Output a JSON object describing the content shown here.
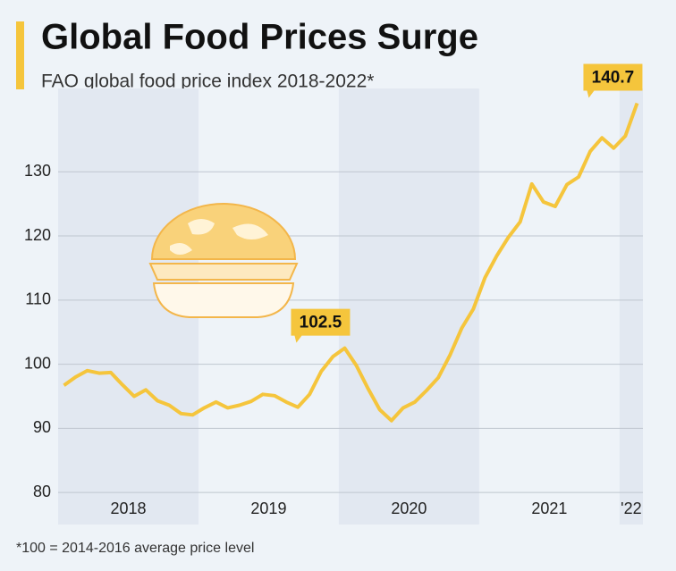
{
  "chart_data": {
    "type": "line",
    "title": "Global Food Prices Surge",
    "subtitle": "FAO global food price index 2018-2022*",
    "footnote": "*100 = 2014-2016 average price level",
    "categories": [
      null,
      null,
      null,
      null,
      null,
      null,
      "2018",
      null,
      null,
      null,
      null,
      null,
      null,
      null,
      null,
      null,
      null,
      null,
      "2019",
      null,
      null,
      null,
      null,
      null,
      null,
      null,
      null,
      null,
      null,
      null,
      "2020",
      null,
      null,
      null,
      null,
      null,
      null,
      null,
      null,
      null,
      null,
      null,
      "2021",
      null,
      null,
      null,
      null,
      null,
      null,
      "'22"
    ],
    "series": [
      {
        "color": "#f5c53c",
        "values": [
          96.7,
          98.0,
          99.0,
          98.6,
          98.7,
          96.8,
          95.0,
          96.0,
          94.3,
          93.6,
          92.3,
          92.1,
          93.2,
          94.1,
          93.2,
          93.6,
          94.2,
          95.3,
          95.1,
          94.1,
          93.3,
          95.3,
          98.9,
          101.2,
          102.5,
          99.8,
          96.2,
          92.9,
          91.2,
          93.2,
          94.1,
          95.9,
          97.9,
          101.4,
          105.6,
          108.6,
          113.5,
          116.9,
          119.8,
          122.2,
          128.1,
          125.3,
          124.6,
          128.0,
          129.2,
          133.2,
          135.3,
          133.7,
          135.6,
          140.7
        ]
      }
    ],
    "ylim": [
      75,
      143
    ],
    "yticks": [
      80,
      90,
      100,
      110,
      120,
      130
    ],
    "grid": true
  }
}
